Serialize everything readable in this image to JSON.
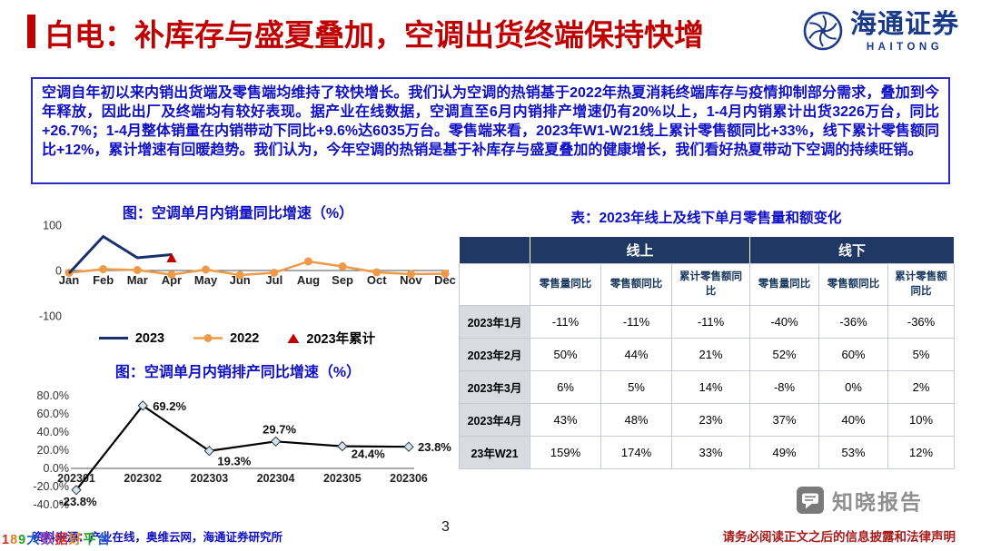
{
  "page": {
    "title": "白电：补库存与盛夏叠加，空调出货终端保持快增",
    "page_number": "3",
    "source_note": "资料来源：产业在线，奥维云网，海通证券研究所",
    "disclaimer": "请务必阅读正文之后的信息披露和法律声明",
    "watermark_brand": "知晓报告",
    "corner_watermark": "189大数据好平台"
  },
  "logo": {
    "name": "海通证券",
    "subtitle": "HAITONG"
  },
  "summary": {
    "text": "空调自年初以来内销出货端及零售端均维持了较快增长。我们认为空调的热销基于2022年热夏消耗终端库存与疫情抑制部分需求，叠加到今年释放，因此出厂及终端均有较好表现。据产业在线数据，空调直至6月内销排产增速仍有20%以上，1-4月内销累计出货3226万台，同比+26.7%；1-4月整体销量在内销带动下同比+9.6%达6035万台。零售端来看，2023年W1-W21线上累计零售额同比+33%，线下累计零售额同比+12%，累计增速有回暖趋势。我们认为，今年空调的热销是基于补库存与盛夏叠加的健康增长，我们看好热夏带动下空调的持续旺销。"
  },
  "colors": {
    "title_red": "#C00000",
    "body_blue": "#0F0FC6",
    "table_navy": "#1F3864",
    "logo_blue": "#19398A",
    "disclaimer_red": "#A81C1C",
    "watermark_gray": "#8F8F8F"
  },
  "chart_data": [
    {
      "type": "line",
      "title": "图：空调单月内销量同比增速（%）",
      "categories": [
        "Jan",
        "Feb",
        "Mar",
        "Apr",
        "May",
        "Jun",
        "Jul",
        "Aug",
        "Sep",
        "Oct",
        "Nov",
        "Dec"
      ],
      "series": [
        {
          "name": "2023",
          "color": "#1A2F6E",
          "width": 3,
          "markers": false,
          "values": [
            -6,
            75,
            28,
            35
          ]
        },
        {
          "name": "2022",
          "color": "#EE9A49",
          "width": 2.5,
          "markers": true,
          "values": [
            -5,
            3,
            1,
            -9,
            2,
            -10,
            -5,
            20,
            9,
            -4,
            -8,
            -7
          ]
        }
      ],
      "marker": {
        "name": "2023年累计",
        "color": "#C00000",
        "x": "Apr",
        "value": 27
      },
      "ylim": [
        -100,
        100
      ],
      "yticks": [
        100,
        0,
        -100
      ],
      "ytick_labels": [
        "100",
        "0",
        "-100"
      ],
      "legend_position": "bottom",
      "grid": false
    },
    {
      "type": "line",
      "title": "图：空调单月内销排产同比增速（%）",
      "categories": [
        "202301",
        "202302",
        "202303",
        "202304",
        "202305",
        "202306"
      ],
      "series": [
        {
          "name": "内销排产同比",
          "color": "#000000",
          "values": [
            -23.8,
            69.2,
            19.3,
            29.7,
            24.4,
            23.8
          ]
        }
      ],
      "point_labels": [
        "-23.8%",
        "69.2%",
        "19.3%",
        "29.7%",
        "24.4%",
        "23.8%"
      ],
      "ylim": [
        -40,
        80
      ],
      "yticks": [
        80,
        60,
        40,
        20,
        0,
        -20,
        -40
      ],
      "ytick_labels": [
        "80.0%",
        "60.0%",
        "40.0%",
        "20.0%",
        "0.0%",
        "-20.0%",
        "-40.0%"
      ],
      "grid": false
    }
  ],
  "table": {
    "title": "表：2023年线上及线下单月零售量和额变化",
    "group_headers": [
      "线上",
      "线下"
    ],
    "sub_headers": [
      "零售量同比",
      "零售额同比",
      "累计零售额同比",
      "零售量同比",
      "零售额同比",
      "累计零售额同比"
    ],
    "rows": [
      {
        "label": "2023年1月",
        "values": [
          "-11%",
          "-11%",
          "-11%",
          "-40%",
          "-36%",
          "-36%"
        ]
      },
      {
        "label": "2023年2月",
        "values": [
          "50%",
          "44%",
          "21%",
          "52%",
          "60%",
          "5%"
        ]
      },
      {
        "label": "2023年3月",
        "values": [
          "6%",
          "5%",
          "14%",
          "-8%",
          "0%",
          "2%"
        ]
      },
      {
        "label": "2023年4月",
        "values": [
          "43%",
          "48%",
          "23%",
          "37%",
          "40%",
          "10%"
        ]
      },
      {
        "label": "23年W21",
        "values": [
          "159%",
          "174%",
          "33%",
          "49%",
          "53%",
          "12%"
        ]
      }
    ]
  }
}
